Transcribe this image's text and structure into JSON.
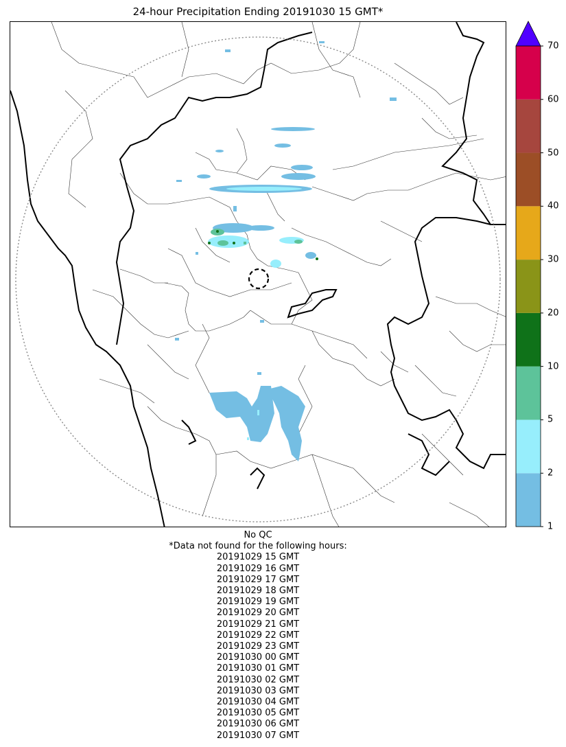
{
  "title": "24-hour Precipitation Ending 20191030 15 GMT*",
  "colorbar": {
    "ticks": [
      "1",
      "2",
      "5",
      "10",
      "20",
      "30",
      "40",
      "50",
      "60",
      "70"
    ],
    "colors": [
      "#74bee3",
      "#97eefc",
      "#5dc39a",
      "#0f7219",
      "#8a9418",
      "#e6a81a",
      "#9c4e26",
      "#a6463e",
      "#d6004b"
    ],
    "extend_color": "#5000ff"
  },
  "notes": {
    "qc": "No QC",
    "missing_header": "*Data not found for the following hours:",
    "missing_hours": [
      "20191029 15 GMT",
      "20191029 16 GMT",
      "20191029 17 GMT",
      "20191029 18 GMT",
      "20191029 19 GMT",
      "20191029 20 GMT",
      "20191029 21 GMT",
      "20191029 22 GMT",
      "20191029 23 GMT",
      "20191030 00 GMT",
      "20191030 01 GMT",
      "20191030 02 GMT",
      "20191030 03 GMT",
      "20191030 04 GMT",
      "20191030 05 GMT",
      "20191030 06 GMT",
      "20191030 07 GMT"
    ]
  }
}
